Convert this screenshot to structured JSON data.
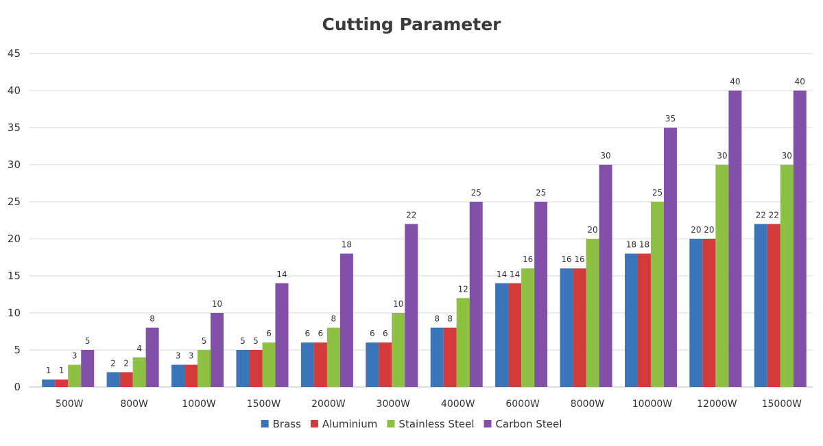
{
  "chart_data": {
    "type": "bar",
    "title": "Cutting Parameter",
    "xlabel": "",
    "ylabel": "",
    "ylim": [
      0,
      45
    ],
    "yticks": [
      0,
      5,
      10,
      15,
      20,
      25,
      30,
      35,
      40,
      45
    ],
    "grid": true,
    "legend_position": "bottom",
    "categories": [
      "500W",
      "800W",
      "1000W",
      "1500W",
      "2000W",
      "3000W",
      "4000W",
      "6000W",
      "8000W",
      "10000W",
      "12000W",
      "15000W"
    ],
    "series": [
      {
        "name": "Brass",
        "color": "#3b75b9",
        "values": [
          1,
          2,
          3,
          5,
          6,
          6,
          8,
          14,
          16,
          18,
          20,
          22
        ]
      },
      {
        "name": "Aluminium",
        "color": "#d33a3a",
        "values": [
          1,
          2,
          3,
          5,
          6,
          6,
          8,
          14,
          16,
          18,
          20,
          22
        ]
      },
      {
        "name": "Stainless Steel",
        "color": "#8dc043",
        "values": [
          3,
          4,
          5,
          6,
          8,
          10,
          12,
          16,
          20,
          25,
          30,
          30
        ]
      },
      {
        "name": "Carbon Steel",
        "color": "#8250a8",
        "values": [
          5,
          8,
          10,
          14,
          18,
          22,
          25,
          25,
          30,
          35,
          40,
          40
        ]
      }
    ]
  }
}
